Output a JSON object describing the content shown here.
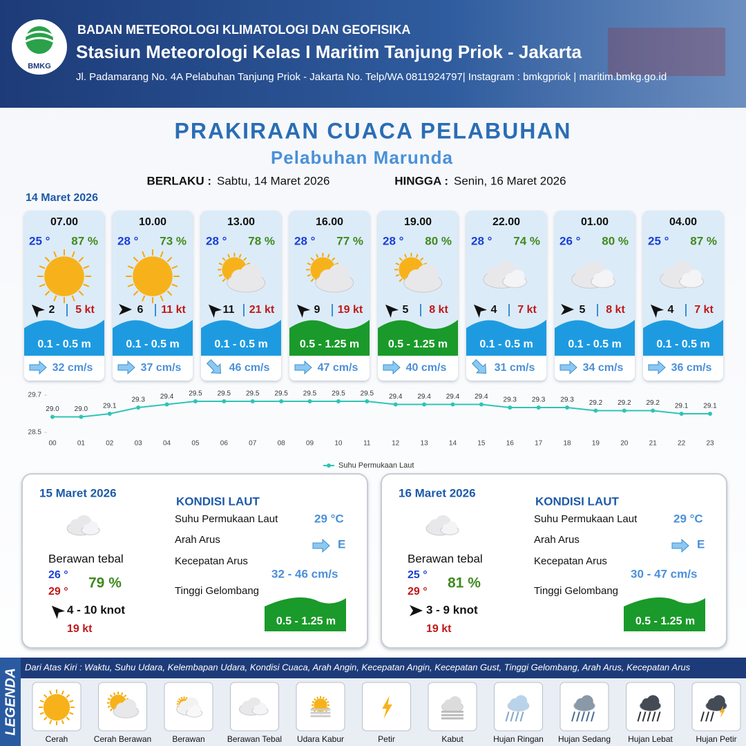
{
  "header": {
    "logo_text": "BMKG",
    "organization": "BADAN METEOROLOGI KLIMATOLOGI DAN GEOFISIKA",
    "station": "Stasiun Meteorologi Kelas I Maritim Tanjung Priok - Jakarta",
    "address": "Jl. Padamarang No. 4A Pelabuhan Tanjung Priok - Jakarta No. Telp/WA 0811924797| Instagram : bmkgpriok | maritim.bmkg.go.id"
  },
  "title": "PRAKIRAAN CUACA PELABUHAN",
  "subtitle": "Pelabuhan Marunda",
  "validity": {
    "from_label": "BERLAKU :",
    "from": "Sabtu, 14 Maret 2026",
    "to_label": "HINGGA :",
    "to": "Senin, 16 Maret 2026"
  },
  "day1": {
    "date": "14 Maret 2026",
    "cards": [
      {
        "time": "07.00",
        "temp": "25 °",
        "humidity": "87 %",
        "icon": "Cerah",
        "wind_rotation": -135,
        "wind": "2",
        "gust": "5 kt",
        "wave": "0.1 - 0.5 m",
        "wave_color": "#1e9be0",
        "current_rotation": 0,
        "current": "32 cm/s"
      },
      {
        "time": "10.00",
        "temp": "28 °",
        "humidity": "73 %",
        "icon": "Cerah",
        "wind_rotation": 0,
        "wind": "6",
        "gust": "11 kt",
        "wave": "0.1 - 0.5 m",
        "wave_color": "#1e9be0",
        "current_rotation": 0,
        "current": "37 cm/s"
      },
      {
        "time": "13.00",
        "temp": "28 °",
        "humidity": "78 %",
        "icon": "Cerah Berawan",
        "wind_rotation": -135,
        "wind": "11",
        "gust": "21 kt",
        "wave": "0.1 - 0.5 m",
        "wave_color": "#1e9be0",
        "current_rotation": 45,
        "current": "46 cm/s"
      },
      {
        "time": "16.00",
        "temp": "28 °",
        "humidity": "77 %",
        "icon": "Cerah Berawan",
        "wind_rotation": -135,
        "wind": "9",
        "gust": "19 kt",
        "wave": "0.5 - 1.25 m",
        "wave_color": "#1a9a2a",
        "current_rotation": 0,
        "current": "47 cm/s"
      },
      {
        "time": "19.00",
        "temp": "28 °",
        "humidity": "80 %",
        "icon": "Cerah Berawan",
        "wind_rotation": -135,
        "wind": "5",
        "gust": "8 kt",
        "wave": "0.5 - 1.25 m",
        "wave_color": "#1a9a2a",
        "current_rotation": 0,
        "current": "40 cm/s"
      },
      {
        "time": "22.00",
        "temp": "28 °",
        "humidity": "74 %",
        "icon": "Berawan Tebal",
        "wind_rotation": -135,
        "wind": "4",
        "gust": "7 kt",
        "wave": "0.1 - 0.5 m",
        "wave_color": "#1e9be0",
        "current_rotation": 45,
        "current": "31 cm/s"
      },
      {
        "time": "01.00",
        "temp": "26 °",
        "humidity": "80 %",
        "icon": "Berawan Tebal",
        "wind_rotation": 0,
        "wind": "5",
        "gust": "8 kt",
        "wave": "0.1 - 0.5 m",
        "wave_color": "#1e9be0",
        "current_rotation": 0,
        "current": "34 cm/s"
      },
      {
        "time": "04.00",
        "temp": "25 °",
        "humidity": "87 %",
        "icon": "Berawan Tebal",
        "wind_rotation": -135,
        "wind": "4",
        "gust": "7 kt",
        "wave": "0.1 - 0.5 m",
        "wave_color": "#1e9be0",
        "current_rotation": 0,
        "current": "36 cm/s"
      }
    ]
  },
  "chart_data": {
    "type": "line",
    "categories": [
      "00",
      "01",
      "02",
      "03",
      "04",
      "05",
      "06",
      "07",
      "08",
      "09",
      "10",
      "11",
      "12",
      "13",
      "14",
      "15",
      "16",
      "17",
      "18",
      "19",
      "20",
      "21",
      "22",
      "23"
    ],
    "series": [
      {
        "name": "Suhu Permukaan Laut",
        "color": "#2ec4b6",
        "values": [
          29.0,
          29.0,
          29.1,
          29.3,
          29.4,
          29.5,
          29.5,
          29.5,
          29.5,
          29.5,
          29.5,
          29.5,
          29.4,
          29.4,
          29.4,
          29.4,
          29.3,
          29.3,
          29.3,
          29.2,
          29.2,
          29.2,
          29.1,
          29.1
        ],
        "value_labels": [
          "29.0",
          "29.0",
          "29.1",
          "29.3",
          "29.4",
          "29.5",
          "29.5",
          "29.5",
          "29.5",
          "29.5",
          "29.5",
          "29.5",
          "29.4",
          "29.4",
          "29.4",
          "29.4",
          "29.3",
          "29.3",
          "29.3",
          "29.2",
          "29.2",
          "29.2",
          "29.1",
          "29.1"
        ]
      }
    ],
    "ylim": [
      28.5,
      29.7
    ],
    "yticks": [
      28.5,
      29.7
    ],
    "legend": "bottom"
  },
  "days": [
    {
      "date": "15 Maret 2026",
      "icon": "Berawan Tebal",
      "condition": "Berawan tebal",
      "temp_min": "26 °",
      "temp_max": "29 °",
      "humidity": "79 %",
      "wind_rotation": -135,
      "wind": "4  - 10 knot",
      "gust": "19 kt",
      "sea_title": "KONDISI LAUT",
      "sst_label": "Suhu Permukaan Laut",
      "sst": "29 °C",
      "dir_label": "Arah Arus",
      "dir": "E",
      "speed_label": "Kecepatan Arus",
      "speed": "32  - 46 cm/s",
      "wave_label": "Tinggi Gelombang",
      "wave": "0.5 - 1.25 m"
    },
    {
      "date": "16 Maret 2026",
      "icon": "Berawan Tebal",
      "condition": "Berawan tebal",
      "temp_min": "25 °",
      "temp_max": "29 °",
      "humidity": "81 %",
      "wind_rotation": 0,
      "wind": "3  - 9 knot",
      "gust": "19 kt",
      "sea_title": "KONDISI LAUT",
      "sst_label": "Suhu Permukaan Laut",
      "sst": "29 °C",
      "dir_label": "Arah Arus",
      "dir": "E",
      "speed_label": "Kecepatan Arus",
      "speed": "30  - 47 cm/s",
      "wave_label": "Tinggi Gelombang",
      "wave": "0.5 - 1.25 m"
    }
  ],
  "legend": {
    "title": "LEGENDA",
    "description": "Dari Atas Kiri : Waktu, Suhu Udara, Kelembapan Udara, Kondisi Cuaca, Arah Angin, Kecepatan Angin, Kecepatan Gust, Tinggi Gelombang, Arah Arus, Kecepatan Arus",
    "items": [
      "Cerah",
      "Cerah Berawan",
      "Berawan",
      "Berawan Tebal",
      "Udara Kabur",
      "Petir",
      "Kabut",
      "Hujan Ringan",
      "Hujan Sedang",
      "Hujan Lebat",
      "Hujan Petir"
    ]
  }
}
